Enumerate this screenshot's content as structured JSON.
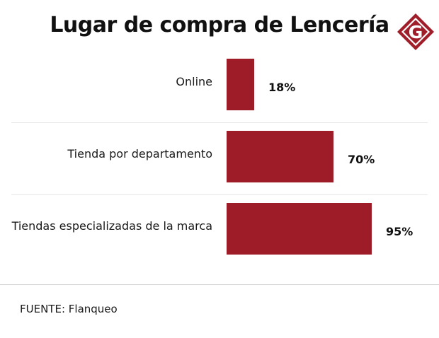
{
  "title": "Lugar de compra de Lencería",
  "logo": {
    "letter": "G",
    "icon": "g-logo-icon",
    "color": "#a01e2a"
  },
  "source": "FUENTE: Flanqueo",
  "colors": {
    "bar": "#9e1c28",
    "separator": "#e6e6e6"
  },
  "chart_data": {
    "type": "bar",
    "orientation": "horizontal",
    "title": "Lugar de compra de Lencería",
    "categories": [
      "Online",
      "Tienda por departamento",
      "Tiendas especializadas de la marca"
    ],
    "values": [
      18,
      70,
      95
    ],
    "value_labels": [
      "18%",
      "70%",
      "95%"
    ],
    "xlim": [
      0,
      100
    ],
    "xlabel": "",
    "ylabel": "",
    "grid": false,
    "legend": "none"
  }
}
